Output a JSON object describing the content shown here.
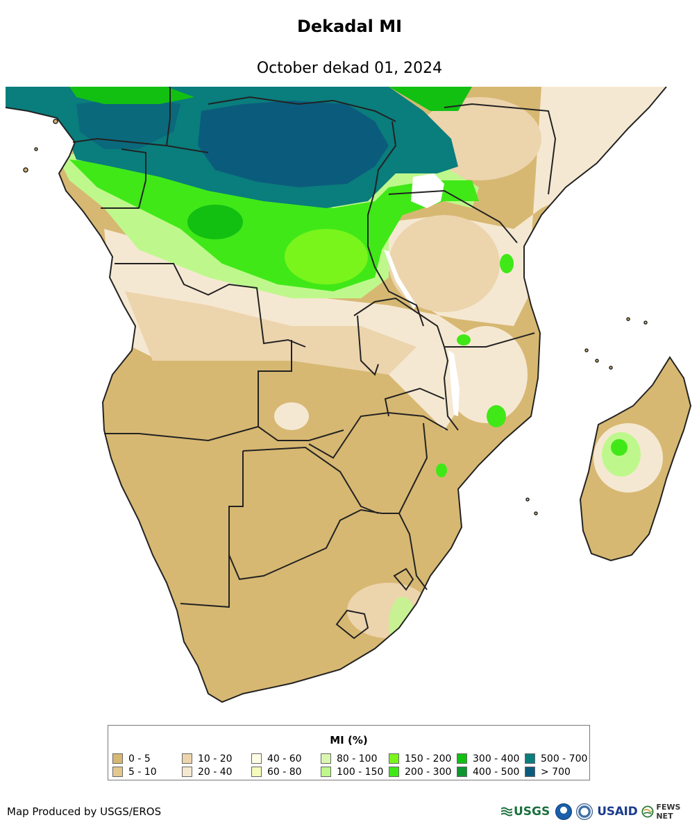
{
  "title": "Dekadal MI",
  "subtitle": "October dekad 01, 2024",
  "legend": {
    "title": "MI (%)",
    "items": [
      {
        "label": "0 - 5",
        "color": "#d7b872"
      },
      {
        "label": "5 - 10",
        "color": "#e3c88e"
      },
      {
        "label": "10 - 20",
        "color": "#ecd4ad"
      },
      {
        "label": "20 - 40",
        "color": "#f5e8d2"
      },
      {
        "label": "40 - 60",
        "color": "#fefee6"
      },
      {
        "label": "60 - 80",
        "color": "#f5fbbd"
      },
      {
        "label": "80 - 100",
        "color": "#daf7b0"
      },
      {
        "label": "100 - 150",
        "color": "#bef88c"
      },
      {
        "label": "150 - 200",
        "color": "#79f51c"
      },
      {
        "label": "200 - 300",
        "color": "#40e818"
      },
      {
        "label": "300 - 400",
        "color": "#12c012"
      },
      {
        "label": "400 - 500",
        "color": "#0e9630"
      },
      {
        "label": "500 - 700",
        "color": "#0a7d7d"
      },
      {
        "label": "> 700",
        "color": "#0b5c7c"
      }
    ]
  },
  "footer": {
    "credit": "Map Produced by USGS/EROS"
  },
  "logos": {
    "usgs": "USGS",
    "usaid": "USAID",
    "fews": "FEWS NET"
  },
  "map_colors": {
    "water": "#ffffff",
    "border": "#222222",
    "dry": "#d7b872",
    "light_dry": "#ecd4ad",
    "pale": "#f5e8d2",
    "light_green": "#bef88c",
    "green": "#40e818",
    "dark_green": "#0e9630",
    "teal": "#0a7d7d",
    "deep_teal": "#0b5c7c"
  }
}
